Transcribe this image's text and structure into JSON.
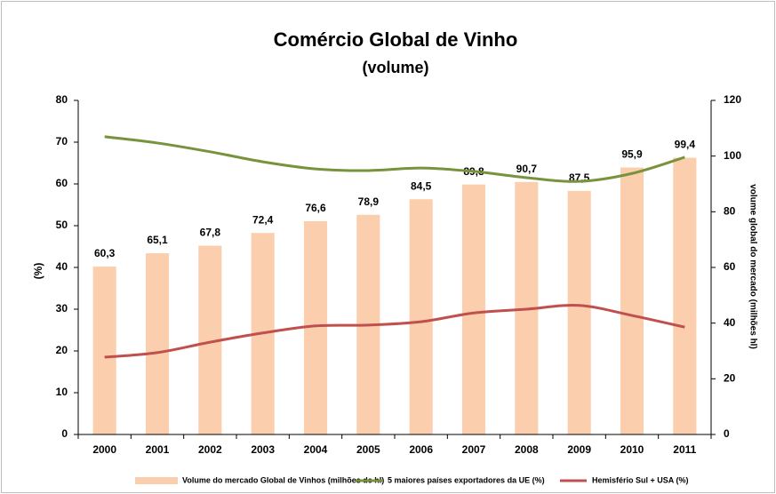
{
  "chart_data": {
    "type": "bar-line",
    "title": "Comércio Global de Vinho",
    "subtitle": "(volume)",
    "y_label": "(%)",
    "y2_label": "volume global do mercado (milhões hl)",
    "categories": [
      "2000",
      "2001",
      "2002",
      "2003",
      "2004",
      "2005",
      "2006",
      "2007",
      "2008",
      "2009",
      "2010",
      "2011"
    ],
    "series": [
      {
        "name": "Volume do mercado Global de Vinhos (milhões de hl)",
        "type": "bar",
        "axis": "y2",
        "color": "#fbcfae",
        "values": [
          60.3,
          65.1,
          67.8,
          72.4,
          76.6,
          78.9,
          84.5,
          89.8,
          90.7,
          87.5,
          95.9,
          99.4
        ],
        "value_labels": [
          "60,3",
          "65,1",
          "67,8",
          "72,4",
          "76,6",
          "78,9",
          "84,5",
          "89,8",
          "90,7",
          "87,5",
          "95,9",
          "99,4"
        ]
      },
      {
        "name": "5 maiores países exportadores da UE (%)",
        "type": "line",
        "axis": "y",
        "color": "#77933c",
        "values": [
          71.3,
          69.8,
          67.7,
          65.3,
          63.6,
          63.2,
          63.8,
          63.0,
          61.5,
          60.6,
          62.5,
          66.4
        ]
      },
      {
        "name": "Hemisfério Sul + USA (%)",
        "type": "line",
        "axis": "y",
        "color": "#c0504d",
        "values": [
          18.5,
          19.6,
          22.1,
          24.3,
          26.0,
          26.2,
          27.0,
          29.1,
          30.0,
          30.9,
          28.5,
          25.7
        ]
      }
    ],
    "ylim": [
      0,
      80
    ],
    "yticks": [
      0,
      10,
      20,
      30,
      40,
      50,
      60,
      70,
      80
    ],
    "y2lim": [
      0,
      120
    ],
    "y2ticks": [
      0,
      20,
      40,
      60,
      80,
      100,
      120
    ],
    "grid": false,
    "legend": "bottom"
  }
}
